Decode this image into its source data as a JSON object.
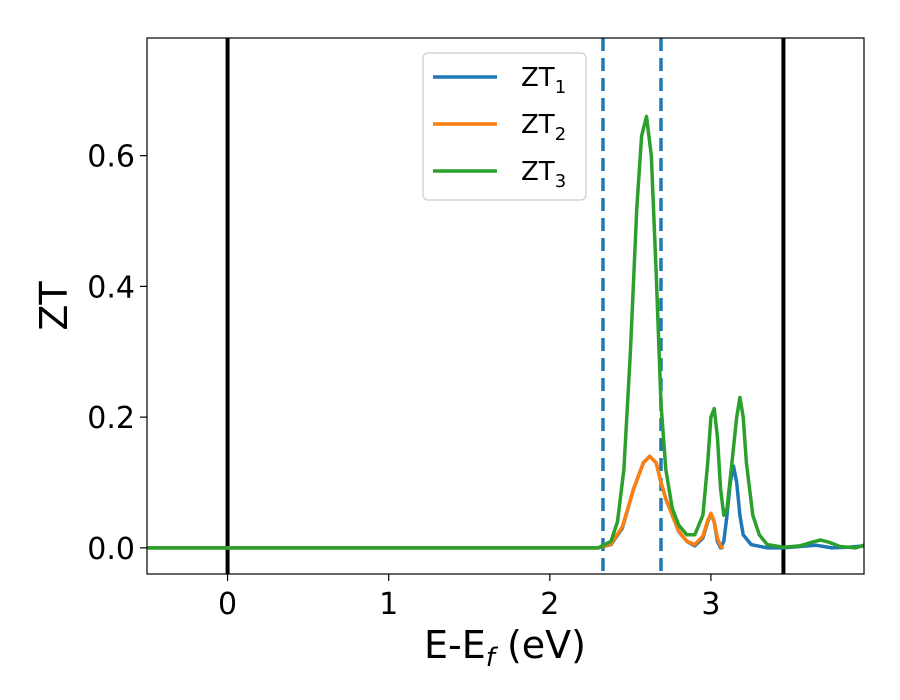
{
  "chart_data": {
    "type": "line",
    "title": "",
    "xlabel": "E-E",
    "xlabel_sub": "f",
    "xlabel_unit": " (eV)",
    "ylabel": "ZT",
    "xlim": [
      -0.5,
      3.95
    ],
    "ylim": [
      -0.04,
      0.78
    ],
    "xticks": [
      0,
      1,
      2,
      3
    ],
    "xtick_labels": [
      "0",
      "1",
      "2",
      "3"
    ],
    "yticks": [
      0.0,
      0.2,
      0.4,
      0.6
    ],
    "ytick_labels": [
      "0.0",
      "0.2",
      "0.4",
      "0.6"
    ],
    "grid": false,
    "legend_position": "top-center",
    "vertical_lines": [
      {
        "x": 0.0,
        "style": "solid",
        "color": "#000000"
      },
      {
        "x": 3.45,
        "style": "solid",
        "color": "#000000"
      },
      {
        "x": 2.33,
        "style": "dashed",
        "color": "#1f77b4"
      },
      {
        "x": 2.69,
        "style": "dashed",
        "color": "#1f77b4"
      }
    ],
    "series": [
      {
        "name": "ZT",
        "name_sub": "1",
        "color": "#1f77b4",
        "x": [
          -0.5,
          2.3,
          2.38,
          2.45,
          2.52,
          2.58,
          2.62,
          2.66,
          2.69,
          2.72,
          2.76,
          2.8,
          2.85,
          2.9,
          2.95,
          2.98,
          3.0,
          3.02,
          3.04,
          3.06,
          3.08,
          3.1,
          3.12,
          3.14,
          3.16,
          3.18,
          3.2,
          3.25,
          3.35,
          3.45,
          3.55,
          3.65,
          3.7,
          3.75,
          3.85,
          3.95
        ],
        "y": [
          0.0,
          0.0,
          0.005,
          0.03,
          0.09,
          0.13,
          0.14,
          0.13,
          0.1,
          0.075,
          0.05,
          0.025,
          0.01,
          0.003,
          0.015,
          0.04,
          0.052,
          0.04,
          0.01,
          0.0,
          0.01,
          0.05,
          0.1,
          0.125,
          0.1,
          0.05,
          0.02,
          0.005,
          0.0,
          0.0,
          0.002,
          0.004,
          0.002,
          0.0,
          0.001,
          0.003
        ]
      },
      {
        "name": "ZT",
        "name_sub": "2",
        "color": "#ff7f0e",
        "x": [
          -0.5,
          2.3,
          2.38,
          2.45,
          2.52,
          2.58,
          2.62,
          2.66,
          2.69,
          2.72,
          2.76,
          2.8,
          2.85,
          2.9,
          2.95,
          2.98,
          3.0,
          3.02,
          3.04,
          3.06,
          3.07
        ],
        "y": [
          0.0,
          0.0,
          0.006,
          0.032,
          0.09,
          0.13,
          0.14,
          0.13,
          0.1,
          0.075,
          0.05,
          0.026,
          0.01,
          0.005,
          0.018,
          0.042,
          0.053,
          0.04,
          0.015,
          0.003,
          0.0
        ]
      },
      {
        "name": "ZT",
        "name_sub": "3",
        "color": "#2ca02c",
        "x": [
          -0.5,
          2.3,
          2.38,
          2.42,
          2.46,
          2.5,
          2.54,
          2.57,
          2.6,
          2.63,
          2.66,
          2.69,
          2.72,
          2.76,
          2.8,
          2.85,
          2.9,
          2.95,
          2.98,
          3.0,
          3.02,
          3.04,
          3.06,
          3.08,
          3.1,
          3.13,
          3.16,
          3.18,
          3.2,
          3.22,
          3.26,
          3.3,
          3.35,
          3.45,
          3.55,
          3.62,
          3.68,
          3.74,
          3.8,
          3.9,
          3.95
        ],
        "y": [
          0.0,
          0.0,
          0.01,
          0.04,
          0.12,
          0.3,
          0.52,
          0.63,
          0.66,
          0.6,
          0.42,
          0.22,
          0.12,
          0.06,
          0.035,
          0.02,
          0.02,
          0.05,
          0.13,
          0.2,
          0.213,
          0.17,
          0.09,
          0.05,
          0.06,
          0.13,
          0.2,
          0.23,
          0.2,
          0.13,
          0.05,
          0.02,
          0.005,
          0.001,
          0.003,
          0.008,
          0.012,
          0.008,
          0.002,
          0.0,
          0.004
        ]
      }
    ]
  }
}
